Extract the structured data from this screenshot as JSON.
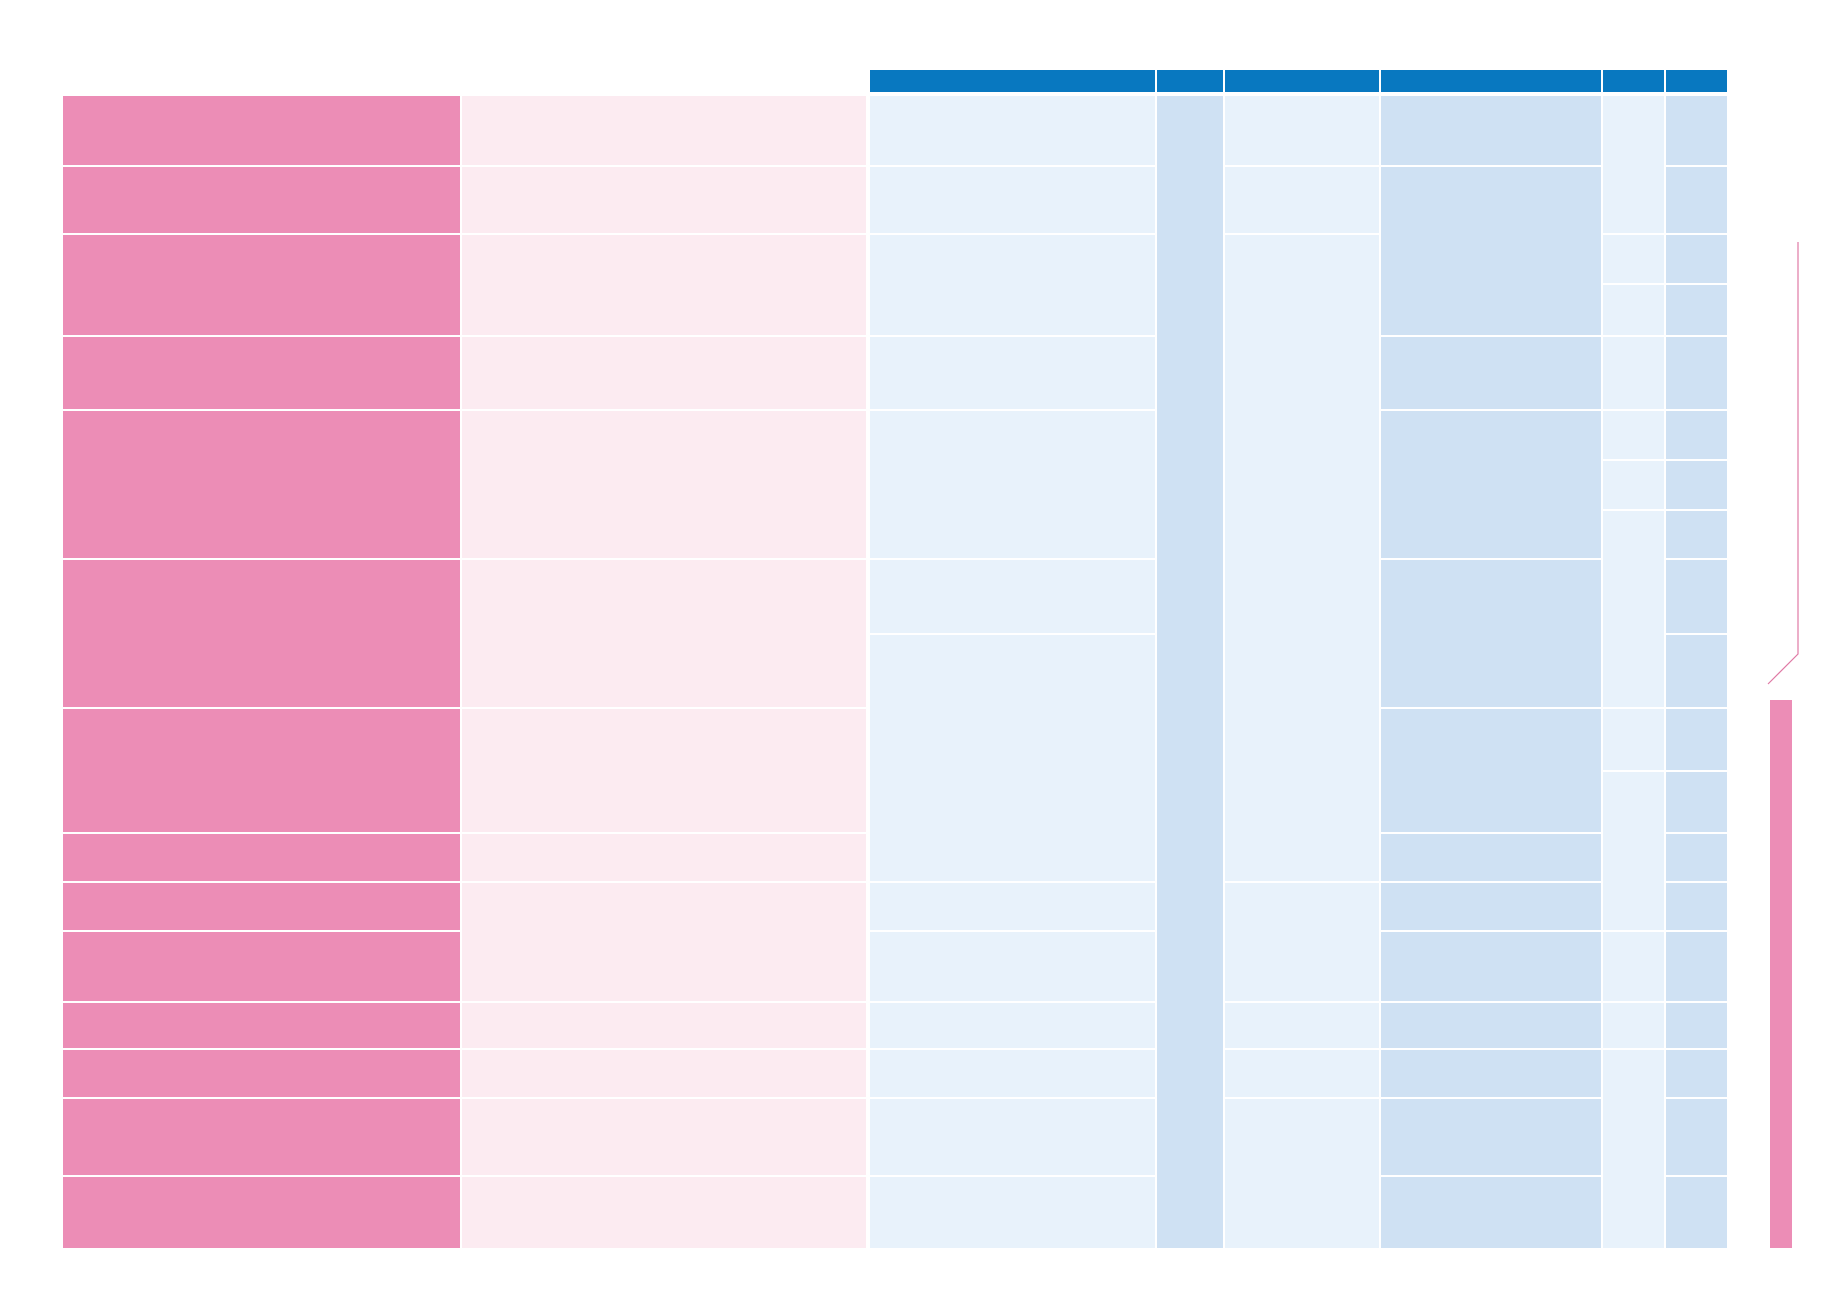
{
  "colors": {
    "header_blue": "#0878c0",
    "pink": "#ec8db6",
    "light_pink": "#fcebf1",
    "light_blue": "#e8f2fb",
    "medium_blue": "#cfe1f3"
  },
  "table": {
    "header_cells": 6,
    "row_count": 15
  }
}
